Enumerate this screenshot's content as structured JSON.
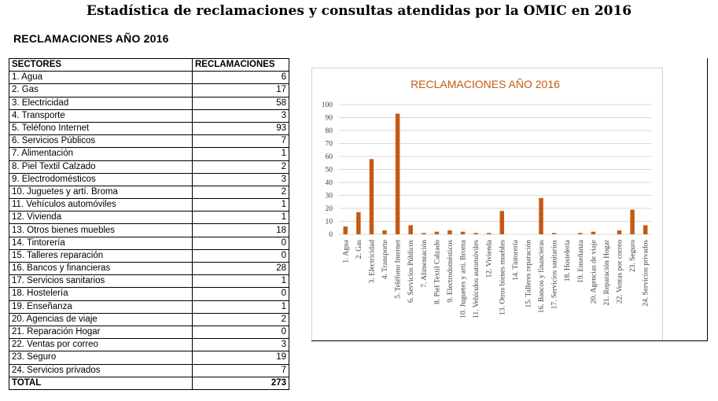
{
  "page_title": "Estadística de reclamaciones y consultas atendidas por la OMIC en 2016",
  "section_title": "RECLAMACIONES  AÑO 2016",
  "table": {
    "headers": [
      "SECTORES",
      "RECLAMACIONES"
    ],
    "rows": [
      {
        "sector": "1. Agua",
        "value": "6"
      },
      {
        "sector": "2. Gas",
        "value": "17"
      },
      {
        "sector": "3. Electricidad",
        "value": "58"
      },
      {
        "sector": "4. Transporte",
        "value": "3"
      },
      {
        "sector": "5. Teléfono Internet",
        "value": "93"
      },
      {
        "sector": "6. Servicios Públicos",
        "value": "7"
      },
      {
        "sector": "7. Alimentación",
        "value": "1"
      },
      {
        "sector": "8. Piel Textil Calzado",
        "value": "2"
      },
      {
        "sector": "9. Electrodomésticos",
        "value": "3"
      },
      {
        "sector": "10. Juguetes y artí. Broma",
        "value": "2"
      },
      {
        "sector": "11. Vehículos automóviles",
        "value": "1"
      },
      {
        "sector": "12. Vivienda",
        "value": "1"
      },
      {
        "sector": "13. Otros bienes muebles",
        "value": "18"
      },
      {
        "sector": "14. Tintorería",
        "value": "0"
      },
      {
        "sector": "15. Talleres reparación",
        "value": "0"
      },
      {
        "sector": "16. Bancos y financieras",
        "value": "28"
      },
      {
        "sector": "17. Servicios sanitarios",
        "value": "1"
      },
      {
        "sector": "18. Hostelería",
        "value": "0"
      },
      {
        "sector": "19. Enseñanza",
        "value": "1"
      },
      {
        "sector": "20. Agencias de viaje",
        "value": "2"
      },
      {
        "sector": "21. Reparación Hogar",
        "value": "0"
      },
      {
        "sector": "22. Ventas por correo",
        "value": "3"
      },
      {
        "sector": "23. Seguro",
        "value": "19"
      },
      {
        "sector": "24. Servicios privados",
        "value": "7"
      }
    ],
    "total_label": "TOTAL",
    "total_value": "273"
  },
  "chart_data": {
    "type": "bar",
    "title": "RECLAMACIONES AÑO 2016",
    "categories": [
      "1. Agua",
      "2. Gas",
      "3. Electricidad",
      "4. Transporte",
      "5. Teléfono Internet",
      "6. Servicios Públicos",
      "7. Alimentación",
      "8. Piel Textil Calzado",
      "9. Electrodomésticos",
      "10. Juguetes y artí. Broma",
      "11. Vehículos automóviles",
      "12. Vivienda",
      "13. Otros bienes muebles",
      "14. Tintorería",
      "15. Talleres reparación",
      "16. Bancos y financieras",
      "17. Servicios sanitarios",
      "18. Hostelería",
      "19. Enseñanza",
      "20. Agencias de viaje",
      "21. Reparación Hogar",
      "22. Ventas por correo",
      "23. Seguro",
      "24. Servicios privados"
    ],
    "values": [
      6,
      17,
      58,
      3,
      93,
      7,
      1,
      2,
      3,
      2,
      1,
      1,
      18,
      0,
      0,
      28,
      1,
      0,
      1,
      2,
      0,
      3,
      19,
      7
    ],
    "y_ticks": [
      0,
      10,
      20,
      30,
      40,
      50,
      60,
      70,
      80,
      90,
      100
    ],
    "ylim": [
      0,
      100
    ],
    "grid": true,
    "legend": "none",
    "bar_color": "#c55a11",
    "grid_color": "#d9d9d9"
  }
}
